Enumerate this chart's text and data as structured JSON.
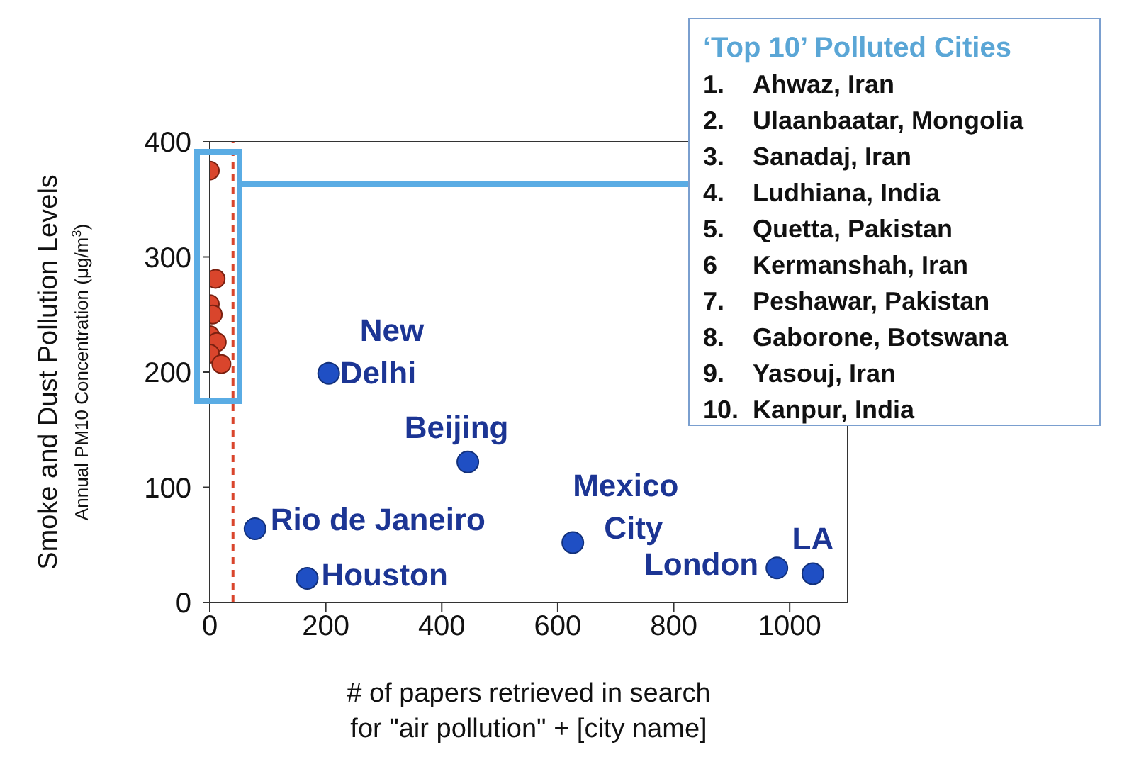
{
  "chart_data": {
    "type": "scatter",
    "xlabel": "# of papers retrieved in search\nfor \"air pollution\" + [city name]",
    "ylabel": "Smoke and Dust Pollution Levels\nAnnual PM10 Concentration (μg/m$^{3}$)",
    "xlim": [
      0,
      1100
    ],
    "xticks": [
      0,
      200,
      400,
      600,
      800,
      1000
    ],
    "ylim": [
      0,
      400
    ],
    "yticks": [
      0,
      100,
      200,
      300,
      400
    ],
    "marker": "circle",
    "series": [
      {
        "color": "#d9452c",
        "x": [
          0,
          10,
          0,
          5,
          0,
          12,
          0,
          20
        ],
        "values": [
          375,
          281,
          259,
          250,
          232,
          226,
          216,
          207
        ]
      },
      {
        "color": "#1f4fc4",
        "x": [
          205,
          445,
          78,
          168,
          626,
          978,
          1040
        ],
        "values": [
          199,
          122,
          64,
          21,
          52,
          30,
          25
        ]
      }
    ],
    "ref_lines": [
      {
        "axis": "x",
        "value": 40,
        "color": "#d9452c",
        "line_style": "dashed"
      }
    ],
    "annotations": [
      {
        "text": "New Delhi",
        "x": 205,
        "y": 199
      },
      {
        "text": "Beijing",
        "x": 445,
        "y": 122
      },
      {
        "text": "Rio de Janeiro",
        "x": 78,
        "y": 64
      },
      {
        "text": "Houston",
        "x": 168,
        "y": 21
      },
      {
        "text": "Mexico City",
        "x": 626,
        "y": 52
      },
      {
        "text": "London",
        "x": 978,
        "y": 30
      },
      {
        "text": "LA",
        "x": 1040,
        "y": 25
      },
      "‘Top 10’ Polluted Cities",
      "1. Ahwaz, Iran",
      "2. Ulaanbaatar, Mongolia",
      "3. Sanadaj, Iran",
      "4. Ludhiana, India",
      "5. Quetta, Pakistan",
      "6 Kermanshah, Iran",
      "7. Peshawar, Pakistan",
      "8. Gaborone, Botswana",
      "9. Yasouj, Iran",
      "10. Kanpur, India"
    ]
  }
}
